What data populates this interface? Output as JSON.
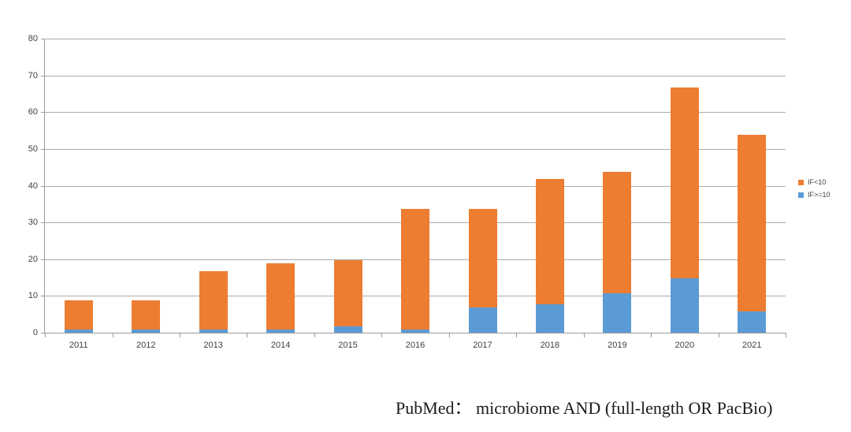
{
  "caption": {
    "text": "PubMed： microbiome AND (full-length OR PacBio)"
  },
  "colors": {
    "series_if_lt_10": "#ED7D31",
    "series_if_ge_10": "#5B9BD5",
    "gridline": "#ACACAC",
    "axis": "#9A9A9A",
    "axis_label": "#3F3F3F",
    "background": "#FFFFFF"
  },
  "chart_data": {
    "type": "bar",
    "stacked": true,
    "title": "",
    "xlabel": "",
    "ylabel": "",
    "categories": [
      "2011",
      "2012",
      "2013",
      "2014",
      "2015",
      "2016",
      "2017",
      "2018",
      "2019",
      "2020",
      "2021"
    ],
    "series": [
      {
        "name": "IF<10",
        "color": "#ED7D31",
        "stack_order": "top",
        "values": [
          8,
          8,
          16,
          18,
          18,
          33,
          27,
          34,
          33,
          52,
          48
        ]
      },
      {
        "name": "IF>=10",
        "color": "#5B9BD5",
        "stack_order": "bottom",
        "values": [
          1,
          1,
          1,
          1,
          2,
          1,
          7,
          8,
          11,
          15,
          6
        ]
      }
    ],
    "stacked_totals": [
      9,
      9,
      17,
      19,
      20,
      34,
      34,
      42,
      44,
      67,
      54
    ],
    "ylim": [
      0,
      80
    ],
    "yticks": [
      0,
      10,
      20,
      30,
      40,
      50,
      60,
      70,
      80
    ],
    "grid": true,
    "legend_position": "right",
    "legend_entries": [
      "IF<10",
      "IF>=10"
    ]
  }
}
